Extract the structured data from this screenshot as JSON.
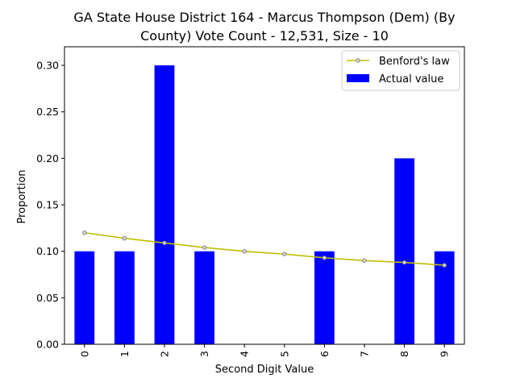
{
  "chart_data": {
    "type": "bar",
    "title_line1": "GA State House District 164 - Marcus Thompson (Dem) (By",
    "title_line2": "County) Vote Count - 12,531, Size - 10",
    "xlabel": "Second Digit Value",
    "ylabel": "Proportion",
    "categories": [
      "0",
      "1",
      "2",
      "3",
      "4",
      "5",
      "6",
      "7",
      "8",
      "9"
    ],
    "ylim": [
      0,
      0.32
    ],
    "yticks": [
      {
        "value": 0.0,
        "label": "0.00"
      },
      {
        "value": 0.05,
        "label": "0.05"
      },
      {
        "value": 0.1,
        "label": "0.10"
      },
      {
        "value": 0.15,
        "label": "0.15"
      },
      {
        "value": 0.2,
        "label": "0.20"
      },
      {
        "value": 0.25,
        "label": "0.25"
      },
      {
        "value": 0.3,
        "label": "0.30"
      }
    ],
    "grid": false,
    "legend_position": "top-right",
    "series": [
      {
        "name": "Benford's law",
        "type": "line",
        "color": "#bfbf00",
        "marker_edge": "#808080",
        "values": [
          0.12,
          0.114,
          0.109,
          0.104,
          0.1,
          0.097,
          0.093,
          0.09,
          0.088,
          0.085
        ]
      },
      {
        "name": "Actual value",
        "type": "bar",
        "color": "#0000ff",
        "values": [
          0.1,
          0.1,
          0.3,
          0.1,
          0.0,
          0.0,
          0.1,
          0.0,
          0.2,
          0.1
        ]
      }
    ]
  }
}
